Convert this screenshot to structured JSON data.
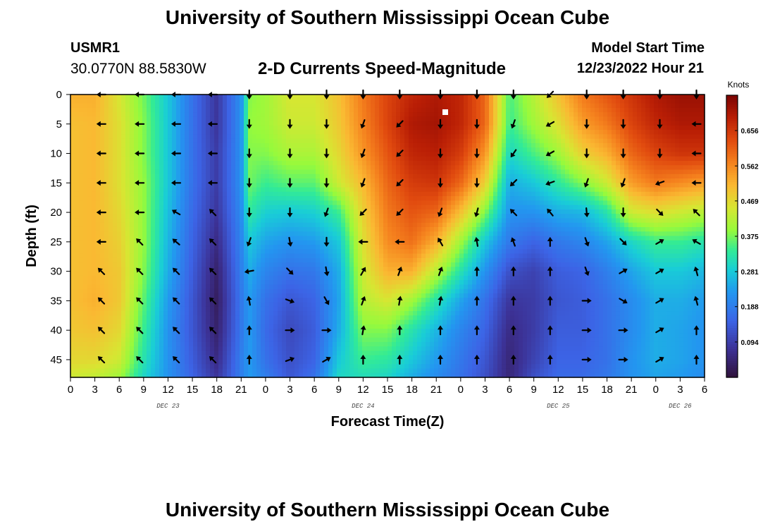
{
  "header": {
    "title": "University of Southern Mississippi Ocean Cube",
    "station_id": "USMR1",
    "coords": "30.0770N  88.5830W",
    "subtitle": "2-D Currents Speed-Magnitude",
    "start_label": "Model Start Time",
    "start_value": "12/23/2022 Hour 21"
  },
  "footer": {
    "title": "University of Southern Mississippi Ocean Cube"
  },
  "chart_data": {
    "type": "heatmap",
    "title": "2-D Currents Speed-Magnitude",
    "xlabel": "Forecast Time(Z)",
    "ylabel": "Depth (ft)",
    "x_tick_labels": [
      "0",
      "3",
      "6",
      "9",
      "12",
      "15",
      "18",
      "21",
      "0",
      "3",
      "6",
      "9",
      "12",
      "15",
      "18",
      "21",
      "0",
      "3",
      "6",
      "9",
      "12",
      "15",
      "18",
      "21",
      "0",
      "3",
      "6"
    ],
    "x_range_hours": [
      0,
      78
    ],
    "date_labels": [
      {
        "text": "DEC 23",
        "hour": 12
      },
      {
        "text": "DEC 24",
        "hour": 36
      },
      {
        "text": "DEC 25",
        "hour": 60
      },
      {
        "text": "DEC 26",
        "hour": 75
      }
    ],
    "y_tick_labels": [
      "0",
      "5",
      "10",
      "15",
      "20",
      "25",
      "30",
      "35",
      "40",
      "45"
    ],
    "y_ticks": [
      0,
      5,
      10,
      15,
      20,
      25,
      30,
      35,
      40,
      45
    ],
    "y_range_ft": [
      0,
      48
    ],
    "colorbar": {
      "label": "Knots",
      "range": [
        0.0,
        0.75
      ],
      "ticks": [
        0.094,
        0.188,
        0.281,
        0.375,
        0.469,
        0.562,
        0.656
      ],
      "tick_labels": [
        "0.094",
        "0.188",
        "0.281",
        "0.375",
        "0.469",
        "0.562",
        "0.656"
      ]
    },
    "speed_grid": {
      "hours": [
        0,
        3,
        6,
        9,
        12,
        15,
        18,
        21,
        22,
        24,
        27,
        30,
        33,
        36,
        39,
        42,
        45,
        48,
        51,
        54,
        57,
        60,
        63,
        66,
        69,
        72,
        75,
        78
      ],
      "depths": [
        0,
        5,
        10,
        15,
        20,
        25,
        30,
        35,
        40,
        45,
        48
      ],
      "values": [
        [
          0.52,
          0.5,
          0.5,
          0.5,
          0.5,
          0.5,
          0.5,
          0.5,
          0.49,
          0.47,
          0.44
        ],
        [
          0.52,
          0.51,
          0.51,
          0.51,
          0.51,
          0.51,
          0.51,
          0.52,
          0.5,
          0.47,
          0.43
        ],
        [
          0.45,
          0.46,
          0.46,
          0.46,
          0.47,
          0.48,
          0.49,
          0.49,
          0.47,
          0.44,
          0.4
        ],
        [
          0.37,
          0.38,
          0.38,
          0.39,
          0.39,
          0.39,
          0.38,
          0.36,
          0.34,
          0.32,
          0.3
        ],
        [
          0.28,
          0.28,
          0.28,
          0.28,
          0.27,
          0.26,
          0.25,
          0.23,
          0.22,
          0.22,
          0.22
        ],
        [
          0.17,
          0.17,
          0.17,
          0.17,
          0.16,
          0.15,
          0.14,
          0.13,
          0.13,
          0.14,
          0.15
        ],
        [
          0.08,
          0.08,
          0.09,
          0.09,
          0.08,
          0.06,
          0.04,
          0.03,
          0.04,
          0.06,
          0.08
        ],
        [
          0.22,
          0.22,
          0.22,
          0.22,
          0.21,
          0.2,
          0.19,
          0.18,
          0.18,
          0.19,
          0.19
        ],
        [
          0.38,
          0.39,
          0.38,
          0.37,
          0.33,
          0.28,
          0.25,
          0.23,
          0.23,
          0.23,
          0.23
        ],
        [
          0.4,
          0.4,
          0.38,
          0.34,
          0.29,
          0.24,
          0.2,
          0.17,
          0.16,
          0.17,
          0.19
        ],
        [
          0.45,
          0.44,
          0.41,
          0.36,
          0.28,
          0.22,
          0.17,
          0.13,
          0.11,
          0.12,
          0.13
        ],
        [
          0.45,
          0.44,
          0.41,
          0.36,
          0.29,
          0.23,
          0.18,
          0.15,
          0.14,
          0.15,
          0.17
        ],
        [
          0.5,
          0.49,
          0.47,
          0.44,
          0.34,
          0.28,
          0.25,
          0.24,
          0.25,
          0.28,
          0.3
        ],
        [
          0.58,
          0.57,
          0.55,
          0.51,
          0.48,
          0.46,
          0.44,
          0.42,
          0.38,
          0.34,
          0.31
        ],
        [
          0.64,
          0.64,
          0.62,
          0.6,
          0.58,
          0.56,
          0.52,
          0.45,
          0.38,
          0.33,
          0.3
        ],
        [
          0.68,
          0.7,
          0.68,
          0.65,
          0.62,
          0.59,
          0.52,
          0.4,
          0.32,
          0.28,
          0.25
        ],
        [
          0.7,
          0.71,
          0.69,
          0.66,
          0.6,
          0.52,
          0.42,
          0.32,
          0.26,
          0.23,
          0.21
        ],
        [
          0.68,
          0.68,
          0.65,
          0.6,
          0.5,
          0.4,
          0.32,
          0.24,
          0.2,
          0.18,
          0.17
        ],
        [
          0.6,
          0.6,
          0.55,
          0.48,
          0.38,
          0.28,
          0.22,
          0.17,
          0.15,
          0.13,
          0.12
        ],
        [
          0.35,
          0.34,
          0.3,
          0.25,
          0.22,
          0.18,
          0.12,
          0.08,
          0.06,
          0.05,
          0.05
        ],
        [
          0.42,
          0.4,
          0.35,
          0.28,
          0.22,
          0.15,
          0.1,
          0.09,
          0.09,
          0.1,
          0.12
        ],
        [
          0.5,
          0.46,
          0.4,
          0.33,
          0.25,
          0.18,
          0.14,
          0.13,
          0.14,
          0.15,
          0.16
        ],
        [
          0.58,
          0.54,
          0.48,
          0.38,
          0.26,
          0.2,
          0.15,
          0.14,
          0.14,
          0.15,
          0.16
        ],
        [
          0.62,
          0.58,
          0.52,
          0.44,
          0.32,
          0.24,
          0.19,
          0.17,
          0.17,
          0.17,
          0.18
        ],
        [
          0.66,
          0.64,
          0.6,
          0.54,
          0.44,
          0.3,
          0.24,
          0.21,
          0.21,
          0.22,
          0.22
        ],
        [
          0.7,
          0.68,
          0.64,
          0.58,
          0.46,
          0.34,
          0.28,
          0.25,
          0.25,
          0.25,
          0.24
        ],
        [
          0.72,
          0.7,
          0.66,
          0.56,
          0.44,
          0.34,
          0.28,
          0.25,
          0.24,
          0.24,
          0.23
        ],
        [
          0.72,
          0.7,
          0.66,
          0.54,
          0.42,
          0.32,
          0.26,
          0.23,
          0.22,
          0.22,
          0.21
        ]
      ]
    },
    "vector_hours": [
      3.8,
      8.5,
      13,
      17.5,
      22,
      27,
      31.5,
      36,
      40.5,
      45.5,
      50,
      54.5,
      59,
      63.5,
      68,
      72.5,
      77
    ],
    "vector_depths": [
      0,
      5,
      10,
      15,
      20,
      25,
      30,
      35,
      40,
      45
    ],
    "vector_dirs_deg": [
      [
        270,
        270,
        270,
        270,
        270,
        270,
        315,
        315,
        315,
        315
      ],
      [
        270,
        270,
        270,
        270,
        270,
        315,
        315,
        315,
        315,
        315
      ],
      [
        270,
        270,
        270,
        270,
        300,
        310,
        315,
        315,
        315,
        315
      ],
      [
        270,
        270,
        270,
        270,
        315,
        315,
        315,
        315,
        315,
        315
      ],
      [
        180,
        180,
        180,
        180,
        180,
        200,
        260,
        350,
        0,
        0
      ],
      [
        180,
        180,
        180,
        180,
        180,
        170,
        135,
        110,
        90,
        70
      ],
      [
        180,
        180,
        180,
        180,
        200,
        180,
        170,
        150,
        90,
        60
      ],
      [
        180,
        200,
        200,
        200,
        225,
        270,
        30,
        20,
        10,
        0
      ],
      [
        180,
        225,
        225,
        225,
        225,
        270,
        20,
        10,
        0,
        0
      ],
      [
        180,
        180,
        180,
        180,
        200,
        330,
        20,
        10,
        0,
        0
      ],
      [
        180,
        180,
        180,
        180,
        195,
        350,
        0,
        0,
        0,
        0
      ],
      [
        180,
        200,
        215,
        225,
        315,
        340,
        0,
        0,
        0,
        0
      ],
      [
        225,
        240,
        240,
        250,
        320,
        0,
        0,
        0,
        0,
        0
      ],
      [
        180,
        180,
        180,
        200,
        175,
        160,
        160,
        90,
        90,
        90
      ],
      [
        180,
        180,
        180,
        200,
        180,
        135,
        60,
        120,
        90,
        90
      ],
      [
        180,
        180,
        180,
        250,
        135,
        60,
        60,
        60,
        60,
        60
      ],
      [
        180,
        270,
        270,
        270,
        315,
        300,
        345,
        345,
        0,
        0
      ]
    ]
  }
}
